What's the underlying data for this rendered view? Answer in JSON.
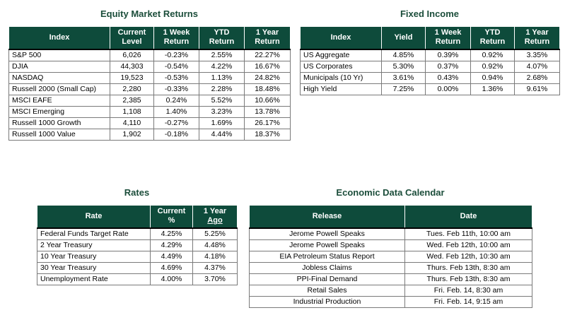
{
  "equity": {
    "title": "Equity Market Returns",
    "headers": [
      [
        "Index",
        ""
      ],
      [
        "Current",
        "Level"
      ],
      [
        "1 Week",
        "Return"
      ],
      [
        "YTD",
        "Return"
      ],
      [
        "1 Year",
        "Return"
      ]
    ],
    "rows": [
      [
        "S&P 500",
        "6,026",
        "-0.23%",
        "2.55%",
        "22.27%"
      ],
      [
        "DJIA",
        "44,303",
        "-0.54%",
        "4.22%",
        "16.67%"
      ],
      [
        "NASDAQ",
        "19,523",
        "-0.53%",
        "1.13%",
        "24.82%"
      ],
      [
        "Russell 2000 (Small Cap)",
        "2,280",
        "-0.33%",
        "2.28%",
        "18.48%"
      ],
      [
        "MSCI EAFE",
        "2,385",
        "0.24%",
        "5.52%",
        "10.66%"
      ],
      [
        "MSCI Emerging",
        "1,108",
        "1.40%",
        "3.23%",
        "13.78%"
      ],
      [
        "Russell 1000 Growth",
        "4,110",
        "-0.27%",
        "1.69%",
        "26.17%"
      ],
      [
        "Russell 1000 Value",
        "1,902",
        "-0.18%",
        "4.44%",
        "18.37%"
      ]
    ]
  },
  "fixed": {
    "title": "Fixed Income",
    "headers": [
      [
        "Index",
        ""
      ],
      [
        "Yield",
        ""
      ],
      [
        "1 Week",
        "Return"
      ],
      [
        "YTD",
        "Return"
      ],
      [
        "1 Year",
        "Return"
      ]
    ],
    "rows": [
      [
        "US Aggregate",
        "4.85%",
        "0.39%",
        "0.92%",
        "3.35%"
      ],
      [
        "US Corporates",
        "5.30%",
        "0.37%",
        "0.92%",
        "4.07%"
      ],
      [
        "Municipals (10 Yr)",
        "3.61%",
        "0.43%",
        "0.94%",
        "2.68%"
      ],
      [
        "High Yield",
        "7.25%",
        "0.00%",
        "1.36%",
        "9.61%"
      ]
    ]
  },
  "rates": {
    "title": "Rates",
    "headers": [
      [
        "Rate",
        ""
      ],
      [
        "Current",
        "%"
      ],
      [
        "1 Year",
        "Ago"
      ]
    ],
    "rows": [
      [
        "Federal Funds Target Rate",
        "4.25%",
        "5.25%"
      ],
      [
        "2 Year Treasury",
        "4.29%",
        "4.48%"
      ],
      [
        "10 Year Treasury",
        "4.49%",
        "4.18%"
      ],
      [
        "30 Year Treasury",
        "4.69%",
        "4.37%"
      ],
      [
        "Unemployment Rate",
        "4.00%",
        "3.70%"
      ]
    ]
  },
  "calendar": {
    "title": "Economic Data Calendar",
    "headers": [
      "Release",
      "Date"
    ],
    "rows": [
      [
        "Jerome Powell Speaks",
        "Tues. Feb 11th, 10:00 am"
      ],
      [
        "Jerome Powell Speaks",
        "Wed. Feb 12th, 10:00 am"
      ],
      [
        "EIA Petroleum Status Report",
        "Wed. Feb 12th, 10:30 am"
      ],
      [
        "Jobless Claims",
        "Thurs. Feb 13th, 8:30 am"
      ],
      [
        "PPI-Final Demand",
        "Thurs. Feb 13th, 8:30 am"
      ],
      [
        "Retail Sales",
        "Fri. Feb. 14, 8:30 am"
      ],
      [
        "Industrial Production",
        "Fri. Feb. 14, 9:15 am"
      ]
    ]
  }
}
